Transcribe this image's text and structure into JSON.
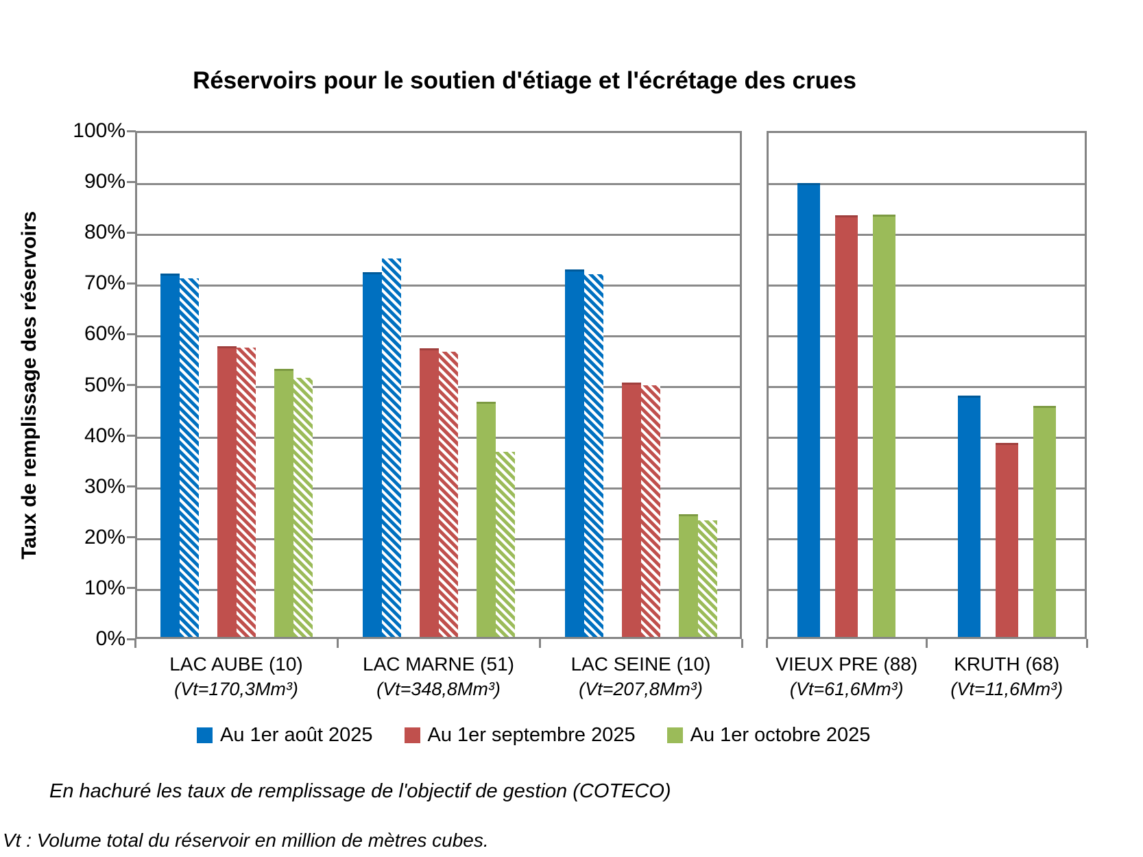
{
  "title": "Réservoirs pour le soutien d'étiage et l'écrétage des crues",
  "footnotes": {
    "hatched": "En hachuré les taux de remplissage de l'objectif de gestion (COTECO)",
    "vt": "Vt : Volume total du réservoir en million de mètres cubes."
  },
  "legend": [
    {
      "label": "Au 1er août 2025",
      "color": "#0070C0"
    },
    {
      "label": "Au 1er septembre 2025",
      "color": "#C0504D"
    },
    {
      "label": "Au 1er octobre 2025",
      "color": "#9BBB59"
    }
  ],
  "chart_data": {
    "type": "bar",
    "title": "Réservoirs pour le soutien d'étiage et l'écrétage des crues",
    "ylabel": "Taux de remplissage des réservoirs",
    "xlabel": "",
    "ylim": [
      0,
      100
    ],
    "ytick_percent": [
      0,
      10,
      20,
      30,
      40,
      50,
      60,
      70,
      80,
      90,
      100
    ],
    "grid": "horizontal",
    "legend_position": "bottom",
    "series_labels": [
      "Au 1er août 2025",
      "Au 1er septembre 2025",
      "Au 1er octobre 2025"
    ],
    "series_colors": [
      "#0070C0",
      "#C0504D",
      "#9BBB59"
    ],
    "series_colors_dark": [
      "#005A9A",
      "#A03F3D",
      "#7C9A42"
    ],
    "hatched_meaning": "Taux de remplissage de l'objectif de gestion (COTECO)",
    "groups": [
      {
        "name": "LAC AUBE (10)",
        "vt": "(Vt=170,3Mm³)",
        "panel": 0,
        "values": [
          71.5,
          57.2,
          52.8
        ],
        "coteco": [
          70.6,
          57.0,
          51.0
        ]
      },
      {
        "name": "LAC MARNE (51)",
        "vt": "(Vt=348,8Mm³)",
        "panel": 0,
        "values": [
          71.8,
          56.8,
          46.3
        ],
        "coteco": [
          74.5,
          56.1,
          36.4
        ]
      },
      {
        "name": "LAC SEINE (10)",
        "vt": "(Vt=207,8Mm³)",
        "panel": 0,
        "values": [
          72.4,
          50.1,
          24.2
        ],
        "coteco": [
          71.4,
          49.5,
          23.0
        ]
      },
      {
        "name": "VIEUX PRE (88)",
        "vt": "(Vt=61,6Mm³)",
        "panel": 1,
        "values": [
          89.3,
          83.0,
          83.2
        ],
        "coteco": null
      },
      {
        "name": "KRUTH (68)",
        "vt": "(Vt=11,6Mm³)",
        "panel": 1,
        "values": [
          47.5,
          38.2,
          45.5
        ],
        "coteco": null
      }
    ]
  }
}
